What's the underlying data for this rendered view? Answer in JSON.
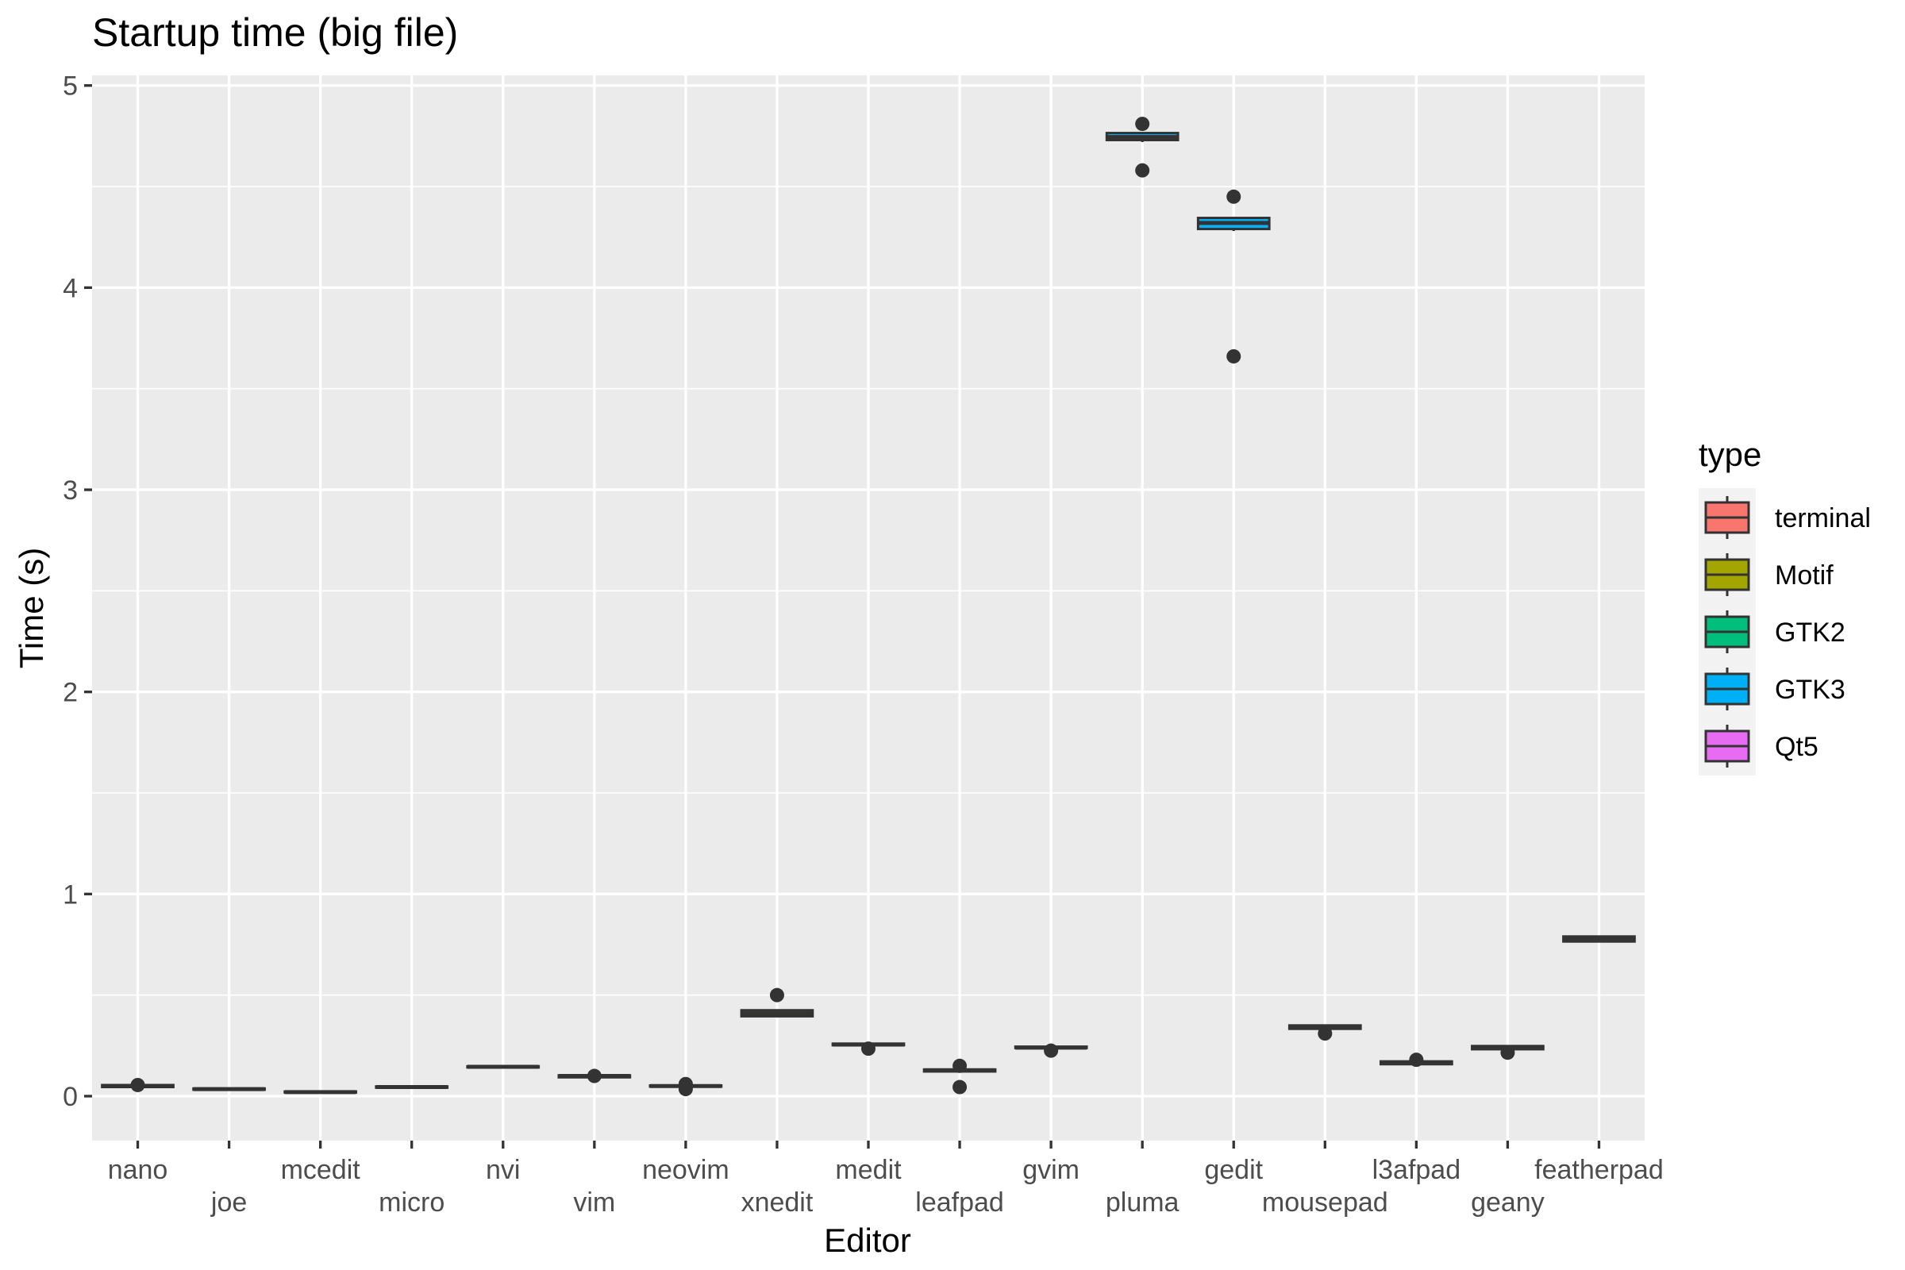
{
  "chart_data": {
    "type": "boxplot",
    "title": "Startup time (big file)",
    "xlabel": "Editor",
    "ylabel": "Time (s)",
    "ylim": [
      -0.22,
      5.05
    ],
    "yticks": [
      0,
      1,
      2,
      3,
      4,
      5
    ],
    "grid": true,
    "legend": {
      "title": "type",
      "placement": "right",
      "entries": [
        {
          "name": "terminal",
          "color": "#F8766D"
        },
        {
          "name": "Motif",
          "color": "#A3A500"
        },
        {
          "name": "GTK2",
          "color": "#00BF7D"
        },
        {
          "name": "GTK3",
          "color": "#00B0F6"
        },
        {
          "name": "Qt5",
          "color": "#E76BF3"
        }
      ]
    },
    "categories": [
      "nano",
      "joe",
      "mcedit",
      "micro",
      "nvi",
      "vim",
      "neovim",
      "xnedit",
      "medit",
      "leafpad",
      "gvim",
      "pluma",
      "gedit",
      "mousepad",
      "l3afpad",
      "geany",
      "featherpad"
    ],
    "boxes": [
      {
        "editor": "nano",
        "type": "terminal",
        "lower": 0.04,
        "q1": 0.045,
        "median": 0.05,
        "q3": 0.055,
        "upper": 0.06,
        "outliers": [
          0.055
        ]
      },
      {
        "editor": "joe",
        "type": "terminal",
        "lower": 0.03,
        "q1": 0.032,
        "median": 0.035,
        "q3": 0.038,
        "upper": 0.04,
        "outliers": []
      },
      {
        "editor": "mcedit",
        "type": "terminal",
        "lower": 0.015,
        "q1": 0.018,
        "median": 0.02,
        "q3": 0.023,
        "upper": 0.025,
        "outliers": []
      },
      {
        "editor": "micro",
        "type": "terminal",
        "lower": 0.04,
        "q1": 0.042,
        "median": 0.045,
        "q3": 0.048,
        "upper": 0.05,
        "outliers": []
      },
      {
        "editor": "nvi",
        "type": "terminal",
        "lower": 0.14,
        "q1": 0.142,
        "median": 0.145,
        "q3": 0.148,
        "upper": 0.15,
        "outliers": []
      },
      {
        "editor": "vim",
        "type": "terminal",
        "lower": 0.09,
        "q1": 0.093,
        "median": 0.1,
        "q3": 0.103,
        "upper": 0.105,
        "outliers": [
          0.1
        ]
      },
      {
        "editor": "neovim",
        "type": "terminal",
        "lower": 0.045,
        "q1": 0.047,
        "median": 0.05,
        "q3": 0.053,
        "upper": 0.055,
        "outliers": [
          0.06,
          0.035
        ]
      },
      {
        "editor": "xnedit",
        "type": "Motif",
        "lower": 0.39,
        "q1": 0.395,
        "median": 0.41,
        "q3": 0.425,
        "upper": 0.43,
        "outliers": [
          0.5
        ]
      },
      {
        "editor": "medit",
        "type": "GTK2",
        "lower": 0.25,
        "q1": 0.252,
        "median": 0.255,
        "q3": 0.26,
        "upper": 0.265,
        "outliers": [
          0.235
        ]
      },
      {
        "editor": "leafpad",
        "type": "GTK2",
        "lower": 0.12,
        "q1": 0.122,
        "median": 0.128,
        "q3": 0.132,
        "upper": 0.135,
        "outliers": [
          0.15,
          0.045
        ]
      },
      {
        "editor": "gvim",
        "type": "GTK3",
        "lower": 0.235,
        "q1": 0.238,
        "median": 0.24,
        "q3": 0.245,
        "upper": 0.25,
        "outliers": [
          0.225
        ]
      },
      {
        "editor": "pluma",
        "type": "GTK3",
        "lower": 4.72,
        "q1": 4.73,
        "median": 4.745,
        "q3": 4.765,
        "upper": 4.77,
        "outliers": [
          4.81,
          4.58
        ]
      },
      {
        "editor": "gedit",
        "type": "GTK3",
        "lower": 4.28,
        "q1": 4.29,
        "median": 4.32,
        "q3": 4.345,
        "upper": 4.35,
        "outliers": [
          4.45,
          3.66
        ]
      },
      {
        "editor": "mousepad",
        "type": "GTK3",
        "lower": 0.33,
        "q1": 0.333,
        "median": 0.34,
        "q3": 0.35,
        "upper": 0.355,
        "outliers": [
          0.31
        ]
      },
      {
        "editor": "l3afpad",
        "type": "GTK3",
        "lower": 0.155,
        "q1": 0.158,
        "median": 0.165,
        "q3": 0.172,
        "upper": 0.175,
        "outliers": [
          0.18
        ]
      },
      {
        "editor": "geany",
        "type": "GTK3",
        "lower": 0.23,
        "q1": 0.232,
        "median": 0.24,
        "q3": 0.248,
        "upper": 0.25,
        "outliers": [
          0.215
        ]
      },
      {
        "editor": "featherpad",
        "type": "Qt5",
        "lower": 0.76,
        "q1": 0.765,
        "median": 0.78,
        "q3": 0.79,
        "upper": 0.795,
        "outliers": []
      }
    ]
  }
}
